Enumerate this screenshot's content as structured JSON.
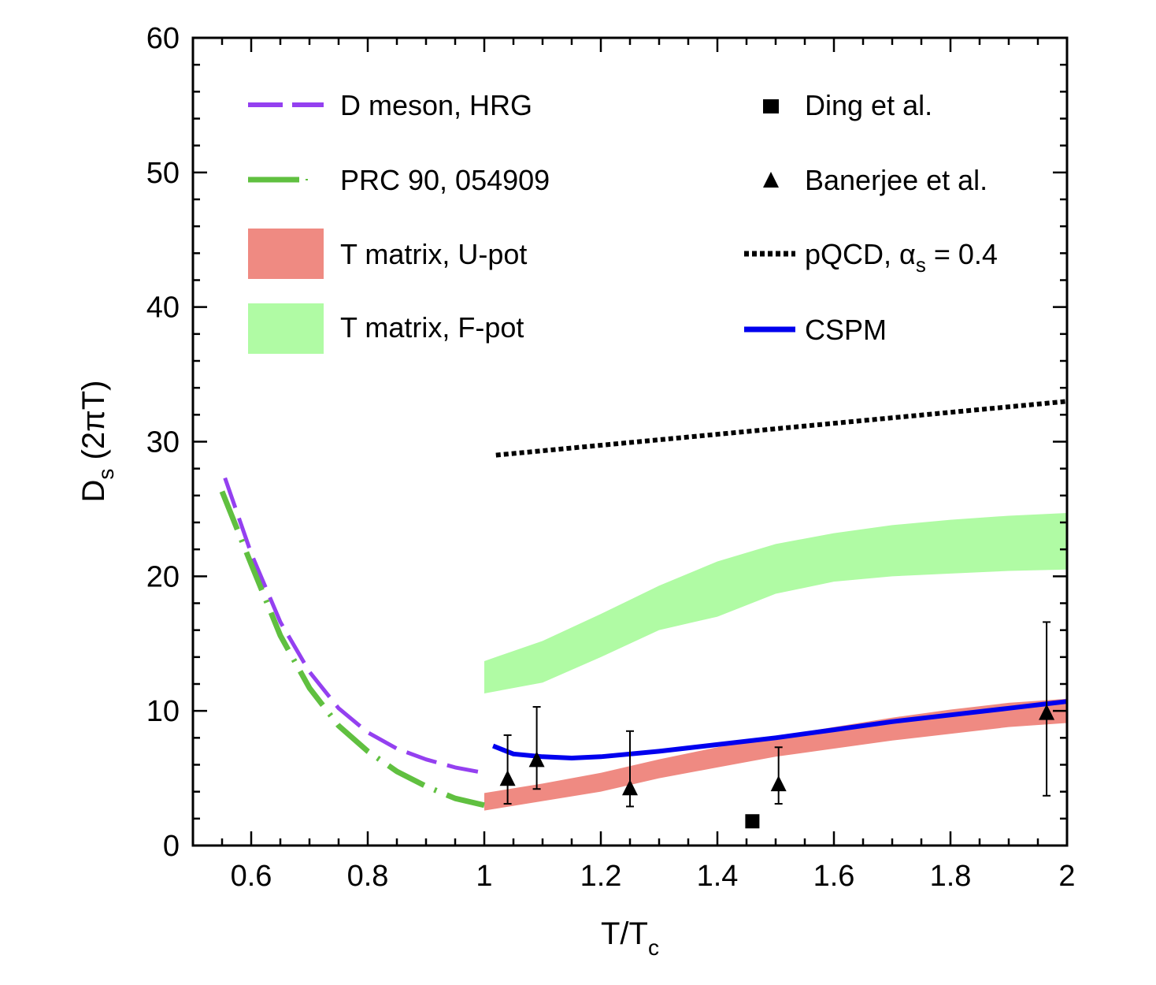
{
  "chart_data": {
    "type": "line",
    "xlabel": {
      "main": "T/T",
      "sub": "c"
    },
    "ylabel": {
      "main": "D",
      "sub": "s",
      "rest": " (2πT)"
    },
    "xlim": [
      0.5,
      2.0
    ],
    "ylim": [
      0,
      60
    ],
    "xticks": [
      0.6,
      0.8,
      1.0,
      1.2,
      1.4,
      1.6,
      1.8,
      2.0
    ],
    "xtick_labels": [
      "0.6",
      "0.8",
      "1",
      "1.2",
      "1.4",
      "1.6",
      "1.8",
      "2"
    ],
    "yticks": [
      0,
      10,
      20,
      30,
      40,
      50,
      60
    ],
    "ytick_labels": [
      "0",
      "10",
      "20",
      "30",
      "40",
      "50",
      "60"
    ],
    "legend": [
      {
        "label": "D meson, HRG",
        "color": "#9440f0",
        "style": "dash"
      },
      {
        "label": "PRC 90, 054909",
        "color": "#60c040",
        "style": "dashdot"
      },
      {
        "label": "T matrix, U-pot",
        "color": "#ef8a82",
        "style": "band"
      },
      {
        "label": "T matrix, F-pot",
        "color": "#b0fba4",
        "style": "band"
      },
      {
        "label": "Ding et al.",
        "color": "#000000",
        "style": "square"
      },
      {
        "label": "Banerjee et al.",
        "color": "#000000",
        "style": "triangle"
      },
      {
        "label_main": "pQCD, ",
        "label_alpha": "α",
        "label_sub": "s",
        "label_tail": " = 0.4",
        "color": "#000000",
        "style": "dot"
      },
      {
        "label": "CSPM",
        "color": "#0000ee",
        "style": "solid"
      }
    ],
    "series": [
      {
        "name": "D meson, HRG",
        "color": "#9440f0",
        "x": [
          0.555,
          0.6,
          0.65,
          0.7,
          0.75,
          0.8,
          0.85,
          0.9,
          0.95,
          1.0
        ],
        "y": [
          27.3,
          21.7,
          16.6,
          12.9,
          10.2,
          8.4,
          7.2,
          6.4,
          5.8,
          5.4
        ]
      },
      {
        "name": "PRC 90, 054909",
        "color": "#60c040",
        "x": [
          0.55,
          0.6,
          0.65,
          0.7,
          0.75,
          0.8,
          0.85,
          0.9,
          0.95,
          1.0
        ],
        "y": [
          26.3,
          20.9,
          15.6,
          11.7,
          8.9,
          7.0,
          5.5,
          4.4,
          3.5,
          3.0
        ]
      },
      {
        "name": "T matrix, U-pot",
        "color": "#ef8a82",
        "x": [
          1.0,
          1.1,
          1.2,
          1.3,
          1.4,
          1.5,
          1.6,
          1.7,
          1.8,
          1.9,
          2.0
        ],
        "lower": [
          2.6,
          3.3,
          4.0,
          5.0,
          5.8,
          6.6,
          7.2,
          7.8,
          8.3,
          8.8,
          9.1
        ],
        "upper": [
          3.9,
          4.6,
          5.4,
          6.4,
          7.3,
          8.1,
          8.8,
          9.5,
          10.1,
          10.6,
          10.9
        ]
      },
      {
        "name": "T matrix, F-pot",
        "color": "#b0fba4",
        "x": [
          1.0,
          1.1,
          1.2,
          1.3,
          1.4,
          1.5,
          1.6,
          1.7,
          1.8,
          1.9,
          2.0
        ],
        "lower": [
          11.3,
          12.1,
          14.0,
          16.0,
          17.0,
          18.7,
          19.6,
          20.0,
          20.2,
          20.4,
          20.5
        ],
        "upper": [
          13.7,
          15.2,
          17.2,
          19.3,
          21.1,
          22.4,
          23.2,
          23.8,
          24.2,
          24.5,
          24.7
        ]
      },
      {
        "name": "CSPM",
        "color": "#0000ee",
        "x": [
          1.015,
          1.05,
          1.1,
          1.15,
          1.2,
          1.3,
          1.4,
          1.5,
          1.6,
          1.7,
          1.8,
          1.9,
          2.0
        ],
        "y": [
          7.4,
          6.8,
          6.6,
          6.5,
          6.6,
          7.0,
          7.5,
          8.0,
          8.6,
          9.2,
          9.7,
          10.2,
          10.7
        ]
      },
      {
        "name": "pQCD, alpha_s = 0.4",
        "color": "#000000",
        "x": [
          1.02,
          2.0
        ],
        "y": [
          29.0,
          33.0
        ]
      }
    ],
    "points": [
      {
        "name": "Banerjee et al.",
        "marker": "triangle",
        "color": "#000000",
        "x": [
          1.04,
          1.09,
          1.25,
          1.505,
          1.965
        ],
        "y": [
          4.9,
          6.3,
          4.2,
          4.5,
          9.8
        ],
        "yerr_low": [
          1.8,
          2.1,
          1.3,
          1.4,
          6.1
        ],
        "yerr_high": [
          3.3,
          4.0,
          4.3,
          2.8,
          6.8
        ]
      },
      {
        "name": "Ding et al.",
        "marker": "square",
        "color": "#000000",
        "x": [
          1.46
        ],
        "y": [
          1.8
        ],
        "yerr_low": [
          0.4
        ],
        "yerr_high": [
          0.4
        ]
      }
    ]
  }
}
